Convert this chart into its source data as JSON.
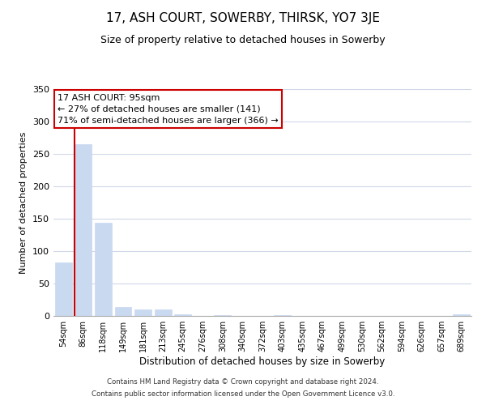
{
  "title": "17, ASH COURT, SOWERBY, THIRSK, YO7 3JE",
  "subtitle": "Size of property relative to detached houses in Sowerby",
  "xlabel": "Distribution of detached houses by size in Sowerby",
  "ylabel": "Number of detached properties",
  "bin_labels": [
    "54sqm",
    "86sqm",
    "118sqm",
    "149sqm",
    "181sqm",
    "213sqm",
    "245sqm",
    "276sqm",
    "308sqm",
    "340sqm",
    "372sqm",
    "403sqm",
    "435sqm",
    "467sqm",
    "499sqm",
    "530sqm",
    "562sqm",
    "594sqm",
    "626sqm",
    "657sqm",
    "689sqm"
  ],
  "bar_heights": [
    82,
    265,
    144,
    14,
    10,
    10,
    3,
    0,
    1,
    0,
    0,
    1,
    0,
    0,
    0,
    0,
    0,
    0,
    0,
    0,
    2
  ],
  "bar_color": "#c9d9f0",
  "bar_edge_color": "#c9d9f0",
  "annotation_title": "17 ASH COURT: 95sqm",
  "annotation_line1": "← 27% of detached houses are smaller (141)",
  "annotation_line2": "71% of semi-detached houses are larger (366) →",
  "annotation_box_color": "#ffffff",
  "annotation_box_edge_color": "#cc0000",
  "property_vline_color": "#cc0000",
  "ylim": [
    0,
    350
  ],
  "yticks": [
    0,
    50,
    100,
    150,
    200,
    250,
    300,
    350
  ],
  "footer_line1": "Contains HM Land Registry data © Crown copyright and database right 2024.",
  "footer_line2": "Contains public sector information licensed under the Open Government Licence v3.0.",
  "background_color": "#ffffff",
  "grid_color": "#d0d8e8",
  "title_fontsize": 11,
  "subtitle_fontsize": 9
}
